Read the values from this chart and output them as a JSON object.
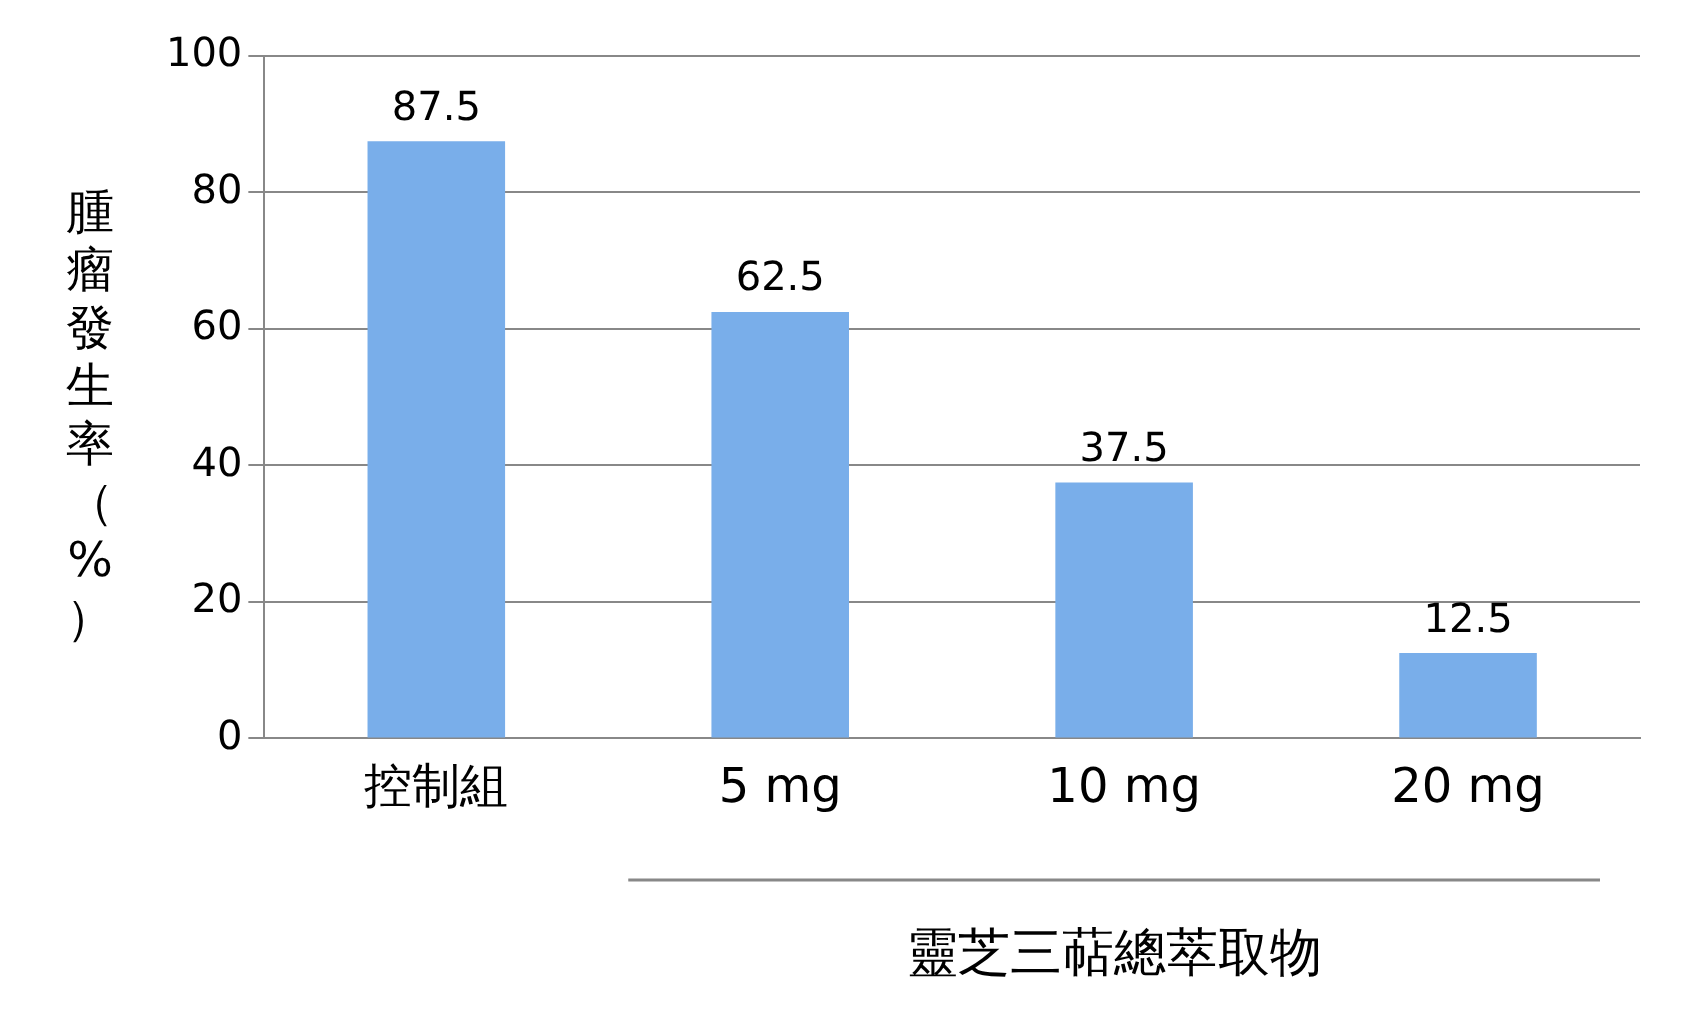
{
  "chart_data": {
    "type": "bar",
    "ylabel": "腫瘤發生率（%）",
    "xlabel": "靈芝三萜總萃取物",
    "categories": [
      "控制組",
      "5 mg",
      "10 mg",
      "20 mg"
    ],
    "values": [
      87.5,
      62.5,
      37.5,
      12.5
    ],
    "color": "#79aeea",
    "ylim": [
      0,
      100
    ],
    "yticks": [
      0,
      20,
      40,
      60,
      80,
      100
    ],
    "grid": "y",
    "data_labels": true
  }
}
